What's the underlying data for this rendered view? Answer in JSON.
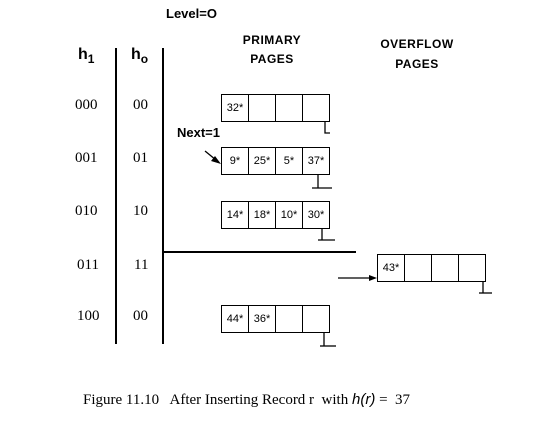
{
  "level_label": "Level=O",
  "columns": {
    "h1_base": "h",
    "h1_sub": "1",
    "h0_base": "h",
    "h0_sub": "o",
    "primary_line1": "PRIMARY",
    "primary_line2": "PAGES",
    "overflow_line1": "OVERFLOW",
    "overflow_line2": "PAGES"
  },
  "next_label": "Next=1",
  "rows": [
    {
      "h1": "000",
      "h0": "00",
      "entries": [
        "32*",
        "",
        "",
        ""
      ]
    },
    {
      "h1": "001",
      "h0": "01",
      "entries": [
        "9*",
        "25*",
        "5*",
        "37*"
      ]
    },
    {
      "h1": "010",
      "h0": "10",
      "entries": [
        "14*",
        "18*",
        "10*",
        "30*"
      ]
    },
    {
      "h1": "011",
      "h0": "11",
      "entries": []
    },
    {
      "h1": "100",
      "h0": "00",
      "entries": [
        "44*",
        "36*",
        "",
        ""
      ]
    }
  ],
  "overflow": {
    "entries": [
      "43*",
      "",
      "",
      ""
    ]
  },
  "caption": {
    "prefix": "Figure 11.10   After Inserting Record r  with ",
    "func": "h(r)",
    "suffix": " =  37"
  }
}
